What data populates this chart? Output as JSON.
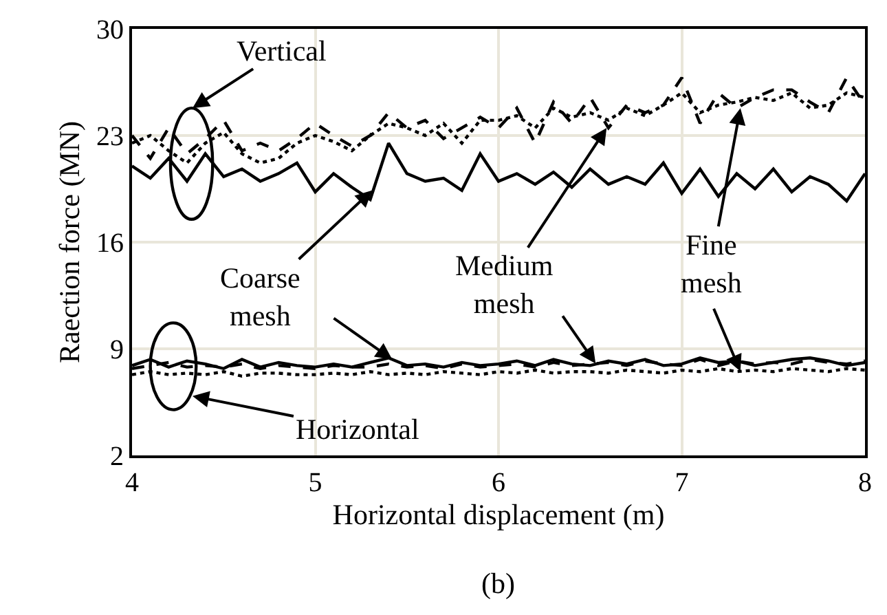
{
  "chart_data": {
    "type": "line",
    "xlabel": "Horizontal displacement (m)",
    "ylabel": "Raection force (MN)",
    "x": [
      4.0,
      4.1,
      4.2,
      4.3,
      4.4,
      4.5,
      4.6,
      4.7,
      4.8,
      4.9,
      5.0,
      5.1,
      5.2,
      5.3,
      5.4,
      5.5,
      5.6,
      5.7,
      5.8,
      5.9,
      6.0,
      6.1,
      6.2,
      6.3,
      6.4,
      6.5,
      6.6,
      6.7,
      6.8,
      6.9,
      7.0,
      7.1,
      7.2,
      7.3,
      7.4,
      7.5,
      7.6,
      7.7,
      7.8,
      7.9,
      8.0
    ],
    "series": [
      {
        "color": "#000000",
        "line_style": "solid",
        "values": [
          21.0,
          20.2,
          21.5,
          20.0,
          21.8,
          20.3,
          20.8,
          20.0,
          20.5,
          21.2,
          19.3,
          20.5,
          19.6,
          18.8,
          22.5,
          20.5,
          20.0,
          20.2,
          19.4,
          21.8,
          20.0,
          20.5,
          19.8,
          20.6,
          19.6,
          20.8,
          19.8,
          20.3,
          19.8,
          21.2,
          19.2,
          20.8,
          19.0,
          20.5,
          19.5,
          20.8,
          19.3,
          20.3,
          19.8,
          18.7,
          20.5
        ]
      },
      {
        "color": "#000000",
        "line_style": "dashed",
        "values": [
          23.0,
          21.5,
          23.5,
          21.8,
          22.8,
          24.0,
          22.0,
          22.5,
          22.0,
          22.8,
          23.8,
          23.0,
          22.3,
          23.0,
          24.5,
          23.5,
          24.0,
          22.8,
          23.5,
          24.2,
          23.5,
          24.8,
          22.5,
          25.2,
          23.8,
          25.5,
          23.5,
          25.0,
          24.5,
          25.0,
          26.8,
          23.8,
          25.8,
          24.8,
          25.5,
          26.0,
          26.0,
          25.2,
          24.5,
          26.8,
          25.0
        ]
      },
      {
        "color": "#000000",
        "line_style": "dotted",
        "values": [
          22.5,
          23.0,
          22.0,
          21.2,
          22.5,
          23.2,
          21.8,
          21.2,
          21.5,
          22.5,
          23.0,
          22.6,
          22.0,
          23.0,
          23.8,
          23.5,
          23.0,
          23.8,
          22.5,
          24.0,
          24.0,
          24.3,
          23.5,
          24.8,
          24.2,
          24.5,
          24.0,
          24.8,
          24.3,
          25.0,
          25.8,
          24.5,
          25.0,
          25.2,
          25.5,
          25.3,
          25.8,
          24.8,
          25.0,
          25.8,
          25.5
        ]
      },
      {
        "color": "#000000",
        "line_style": "solid",
        "values": [
          7.9,
          8.3,
          7.8,
          8.2,
          8.0,
          7.7,
          8.3,
          7.8,
          8.1,
          7.9,
          7.8,
          8.0,
          7.8,
          8.1,
          8.4,
          7.9,
          8.0,
          7.8,
          8.1,
          7.9,
          8.0,
          8.2,
          7.9,
          8.3,
          8.0,
          7.9,
          8.2,
          8.0,
          8.3,
          7.9,
          8.0,
          8.4,
          8.1,
          8.2,
          7.9,
          8.1,
          8.3,
          8.4,
          8.2,
          7.9,
          8.1
        ]
      },
      {
        "color": "#000000",
        "line_style": "dashed",
        "values": [
          7.7,
          7.9,
          8.1,
          7.8,
          7.9,
          7.8,
          8.0,
          7.7,
          7.9,
          7.8,
          7.7,
          7.9,
          7.8,
          7.8,
          8.0,
          7.8,
          7.9,
          7.7,
          8.0,
          7.8,
          7.9,
          8.0,
          7.8,
          8.1,
          7.9,
          8.0,
          8.1,
          7.9,
          8.2,
          8.0,
          7.9,
          8.3,
          7.9,
          8.2,
          8.0,
          8.1,
          8.0,
          8.3,
          8.1,
          8.0,
          8.2
        ]
      },
      {
        "color": "#000000",
        "line_style": "dotted",
        "values": [
          7.3,
          7.5,
          7.3,
          7.4,
          7.3,
          7.5,
          7.2,
          7.4,
          7.4,
          7.3,
          7.3,
          7.4,
          7.3,
          7.5,
          7.3,
          7.4,
          7.3,
          7.5,
          7.4,
          7.3,
          7.5,
          7.4,
          7.6,
          7.4,
          7.5,
          7.5,
          7.4,
          7.6,
          7.5,
          7.4,
          7.6,
          7.5,
          7.7,
          7.5,
          7.6,
          7.5,
          7.7,
          7.6,
          7.5,
          7.7,
          7.6
        ]
      }
    ],
    "xlim": [
      4,
      8
    ],
    "xticks": [
      4,
      5,
      6,
      7,
      8
    ],
    "ylim": [
      2,
      30
    ],
    "yticks": [
      2,
      9,
      16,
      23,
      30
    ],
    "grid": true,
    "marker": "none",
    "annotations": [
      "Vertical",
      {
        "text": "Coarse\nmesh",
        "x": 5.31,
        "y": 19.4
      },
      {
        "text": "Medium\nmesh",
        "x": 6.59,
        "y": 23.5
      },
      {
        "text": "Fine\nmesh",
        "x": 7.32,
        "y": 24.8
      },
      "Horizontal",
      "(b)"
    ]
  }
}
